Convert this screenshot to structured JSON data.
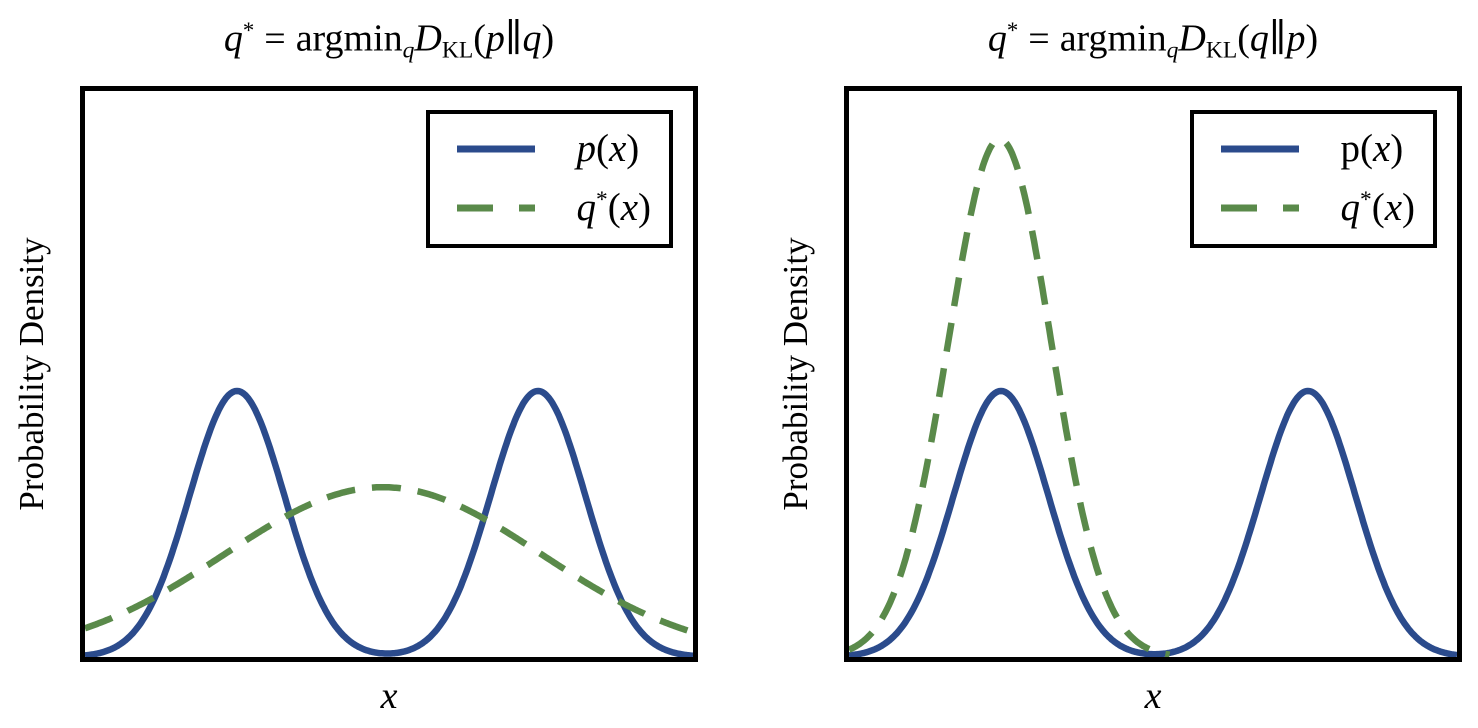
{
  "colors": {
    "p_curve": "#2b4b8c",
    "q_curve": "#5a8a4a",
    "frame": "#000000",
    "background": "#ffffff"
  },
  "panels": [
    {
      "title": {
        "lhs": "q",
        "lhs_sup": "*",
        "rel": "=",
        "op": "argmin",
        "op_sub": "q",
        "div": "D",
        "div_sub": "KL",
        "open": "(",
        "arg1": "p",
        "bar": "∥",
        "arg2": "q",
        "close": ")"
      },
      "ylabel": "Probability Density",
      "xlabel": "x",
      "legend": [
        {
          "name": "p",
          "sup": "",
          "open": "(",
          "var": "x",
          "close": ")",
          "name_style": "italic",
          "line": "solid-blue"
        },
        {
          "name": "q",
          "sup": "*",
          "open": "(",
          "var": "x",
          "close": ")",
          "name_style": "italic",
          "line": "dashed-green"
        }
      ]
    },
    {
      "title": {
        "lhs": "q",
        "lhs_sup": "*",
        "rel": "=",
        "op": "argmin",
        "op_sub": "q",
        "div": "D",
        "div_sub": "KL",
        "open": "(",
        "arg1": "q",
        "bar": "∥",
        "arg2": "p",
        "close": ")"
      },
      "ylabel": "Probability Density",
      "xlabel": "x",
      "legend": [
        {
          "name": "p",
          "sup": "",
          "open": "(",
          "var": "x",
          "close": ")",
          "name_style": "roman",
          "line": "solid-blue"
        },
        {
          "name": "q",
          "sup": "*",
          "open": "(",
          "var": "x",
          "close": ")",
          "name_style": "italic",
          "line": "dashed-green"
        }
      ]
    }
  ],
  "chart_data": [
    {
      "type": "line",
      "title": "q* = argmin_q D_KL(p∥q)",
      "xlabel": "x",
      "ylabel": "Probability Density",
      "x_range": [
        0,
        1
      ],
      "y_range": [
        0,
        1
      ],
      "ticks": "none",
      "grid": false,
      "legend_position": "upper right",
      "series": [
        {
          "name": "p(x)",
          "color": "#2b4b8c",
          "style": "solid",
          "model": "gaussian_mixture",
          "components": [
            {
              "mean": 0.25,
              "sigma": 0.078,
              "peak": 0.47
            },
            {
              "mean": 0.745,
              "sigma": 0.078,
              "peak": 0.47
            }
          ]
        },
        {
          "name": "q*(x)",
          "color": "#5a8a4a",
          "style": "dashed",
          "model": "gaussian_mixture",
          "components": [
            {
              "mean": 0.49,
              "sigma": 0.26,
              "peak": 0.3
            }
          ]
        }
      ]
    },
    {
      "type": "line",
      "title": "q* = argmin_q D_KL(q∥p)",
      "xlabel": "x",
      "ylabel": "Probability Density",
      "x_range": [
        0,
        1
      ],
      "y_range": [
        0,
        1
      ],
      "ticks": "none",
      "grid": false,
      "legend_position": "upper right",
      "series": [
        {
          "name": "p(x)",
          "color": "#2b4b8c",
          "style": "solid",
          "model": "gaussian_mixture",
          "components": [
            {
              "mean": 0.25,
              "sigma": 0.078,
              "peak": 0.47
            },
            {
              "mean": 0.755,
              "sigma": 0.078,
              "peak": 0.47
            }
          ]
        },
        {
          "name": "q*(x)",
          "color": "#5a8a4a",
          "style": "dashed",
          "model": "gaussian_mixture",
          "components": [
            {
              "mean": 0.248,
              "sigma": 0.085,
              "peak": 0.915
            }
          ]
        }
      ]
    }
  ]
}
